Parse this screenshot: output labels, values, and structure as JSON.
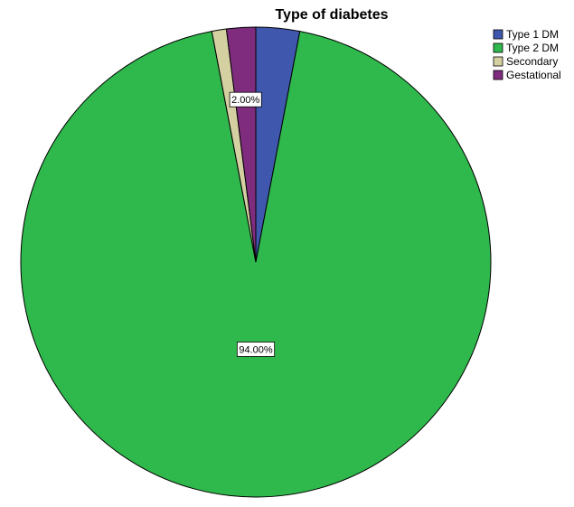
{
  "chart_data": {
    "type": "pie",
    "title": "Type of diabetes",
    "categories": [
      "Type 1 DM",
      "Type 2 DM",
      "Secondary",
      "Gestational"
    ],
    "values": [
      3,
      94,
      1,
      2
    ],
    "value_labels": [
      null,
      "94.00%",
      null,
      "2.00%"
    ],
    "colors": [
      "#3f58ae",
      "#2fb84c",
      "#d5d0a2",
      "#7f2c7e"
    ],
    "legend": "top-right"
  }
}
